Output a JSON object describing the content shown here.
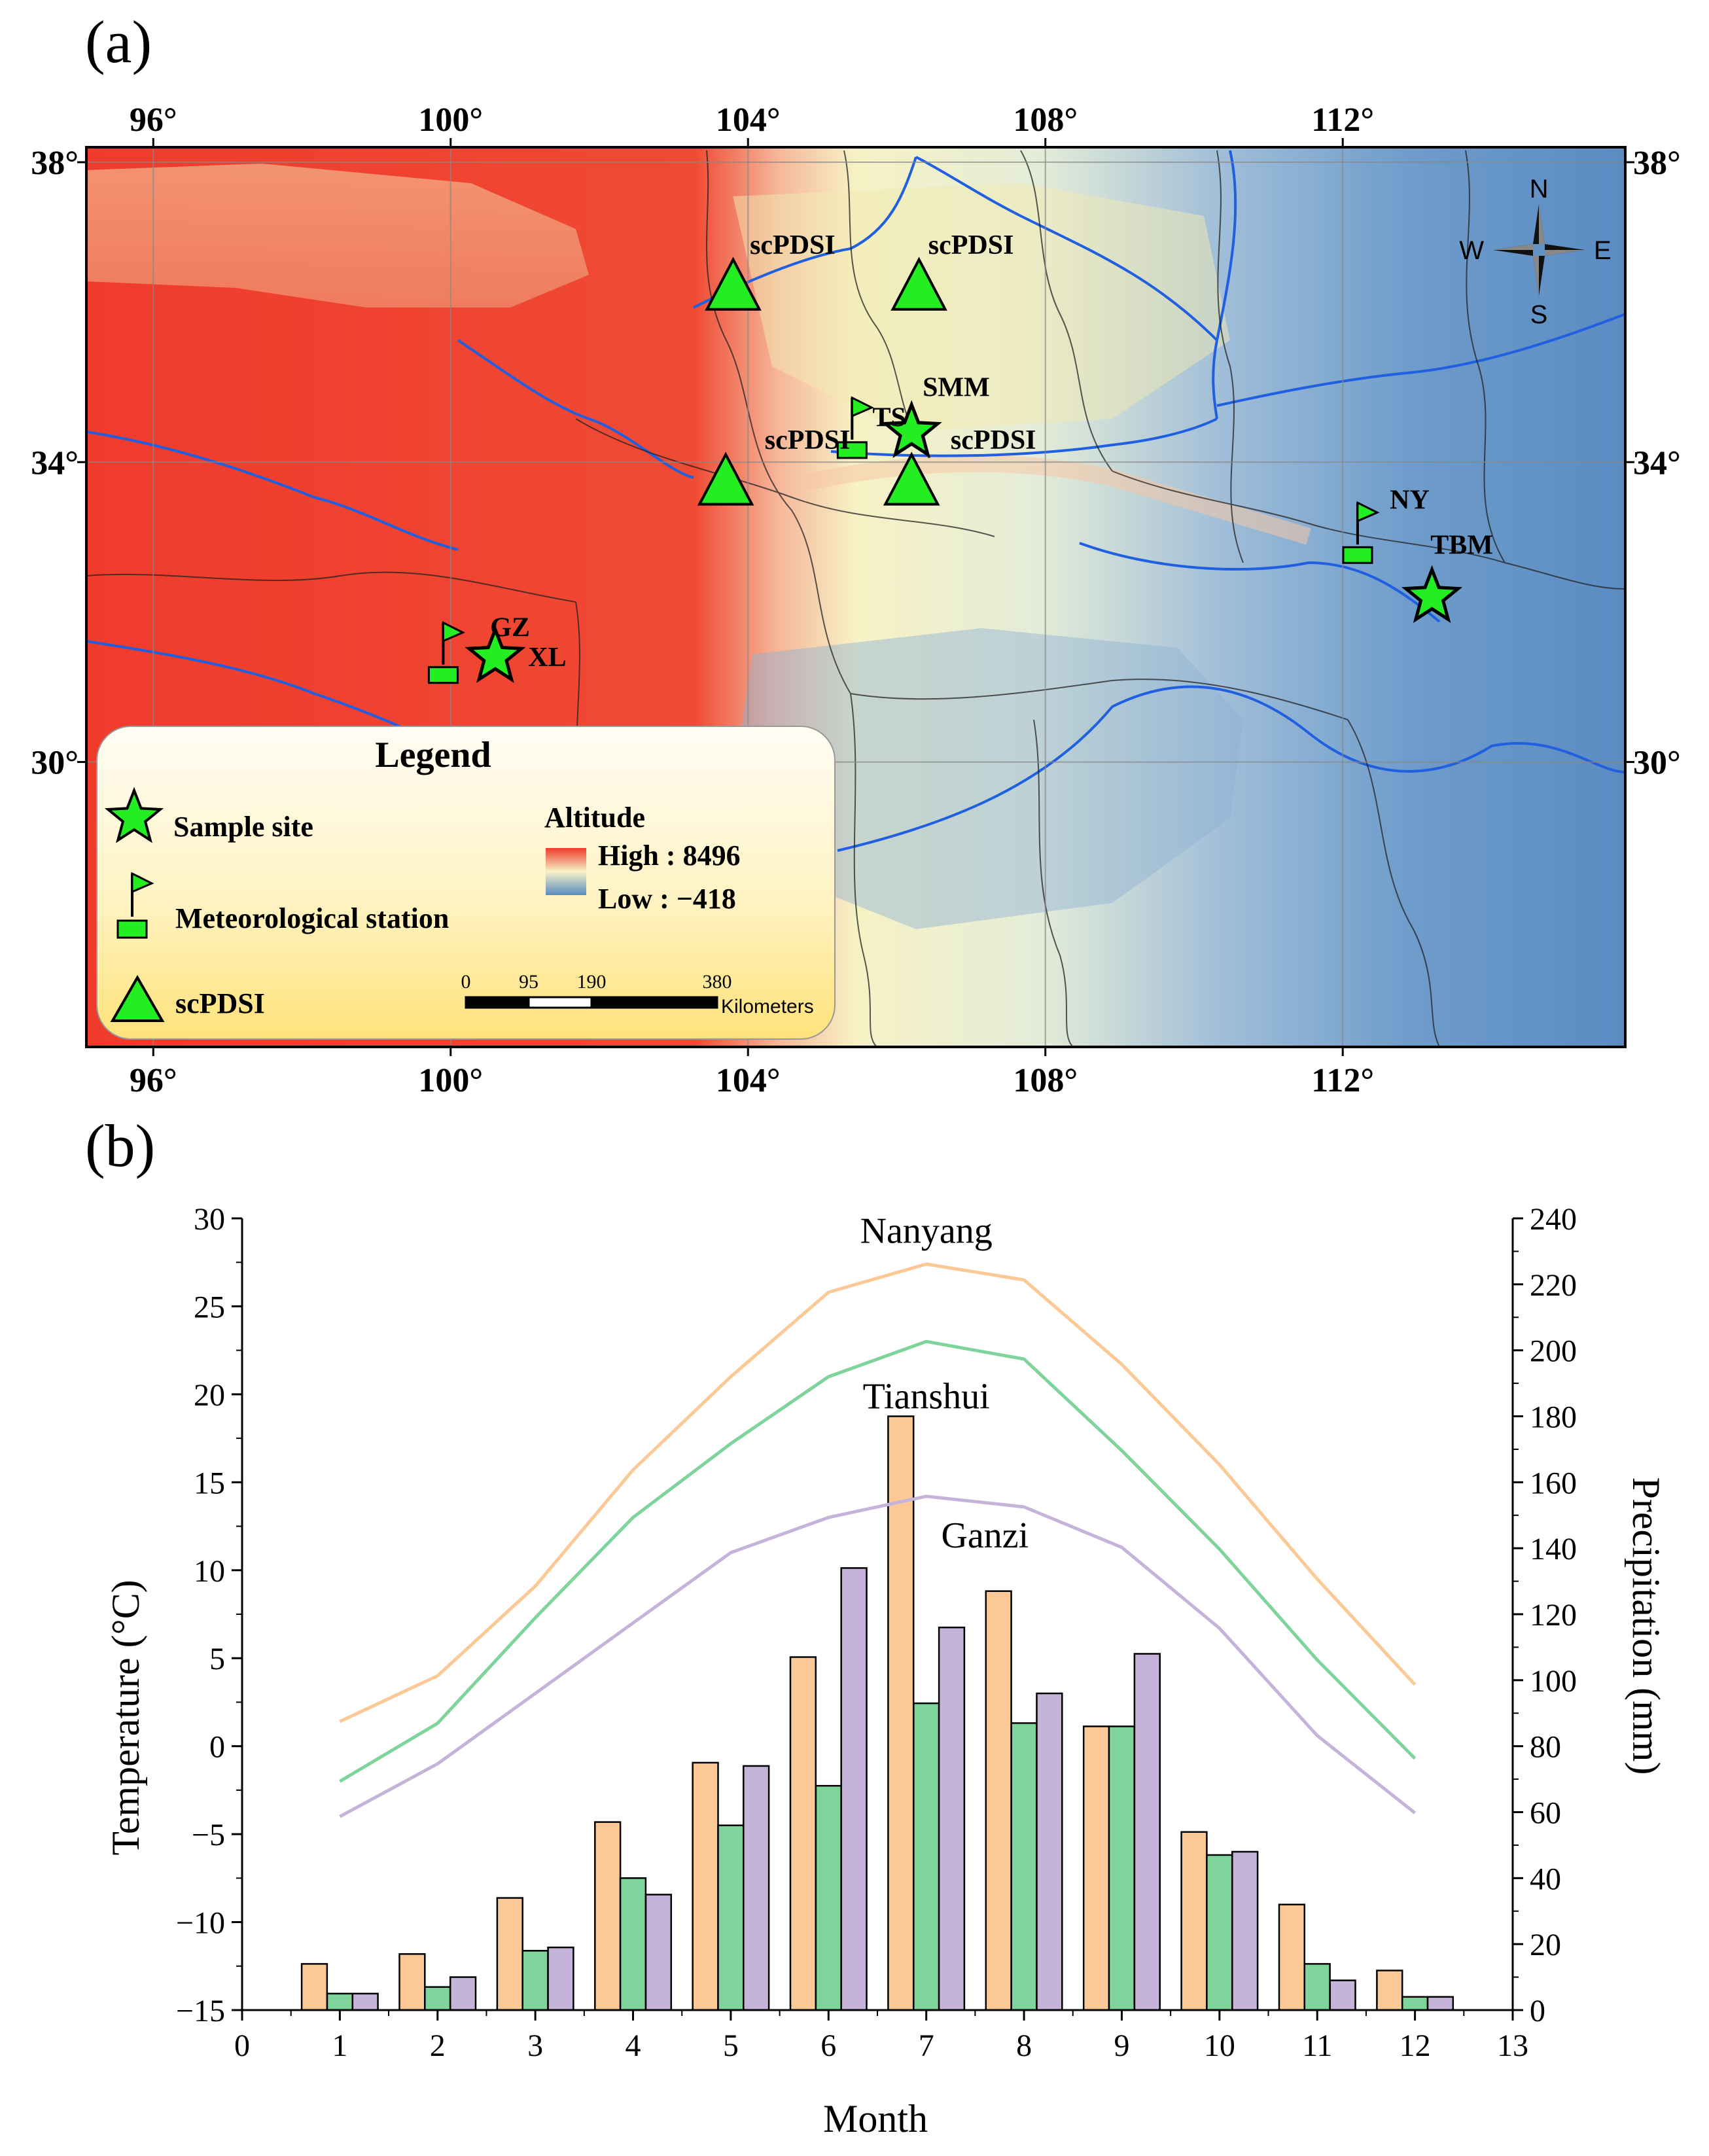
{
  "panels": [
    {
      "label": "(a)"
    },
    {
      "label": "(b)"
    }
  ],
  "map": {
    "lon_ticks": [
      {
        "lon": 96,
        "label": "96°"
      },
      {
        "lon": 100,
        "label": "100°"
      },
      {
        "lon": 104,
        "label": "104°"
      },
      {
        "lon": 108,
        "label": "108°"
      },
      {
        "lon": 112,
        "label": "112°"
      }
    ],
    "lat_ticks": [
      {
        "lat": 38,
        "label": "38°"
      },
      {
        "lat": 34,
        "label": "34°"
      },
      {
        "lat": 30,
        "label": "30°"
      }
    ],
    "lon_range": [
      95.1,
      115.8
    ],
    "lat_range": [
      26.2,
      38.2
    ],
    "colors": {
      "high": "#ef3b2c",
      "mid": "#f6f2bd",
      "low": "#5b8fc4",
      "river": "#1f5fe0",
      "marker": "#22ee22"
    },
    "sample_sites": [
      {
        "lon": 106.2,
        "lat": 34.4
      },
      {
        "lon": 100.6,
        "lat": 31.4
      },
      {
        "lon": 113.2,
        "lat": 32.2
      }
    ],
    "stations": [
      {
        "lon": 105.4,
        "lat": 34.3
      },
      {
        "lon": 99.9,
        "lat": 31.3
      },
      {
        "lon": 112.2,
        "lat": 32.9
      }
    ],
    "scpdsi_points": [
      {
        "lon": 103.8,
        "lat": 36.3
      },
      {
        "lon": 106.3,
        "lat": 36.3
      },
      {
        "lon": 103.7,
        "lat": 33.7
      },
      {
        "lon": 106.2,
        "lat": 33.7
      }
    ],
    "labels": [
      {
        "text": "scPDSI",
        "lon": 104.6,
        "lat": 36.9
      },
      {
        "text": "scPDSI",
        "lon": 107.0,
        "lat": 36.9
      },
      {
        "text": "SMM",
        "lon": 106.8,
        "lat": 35.0
      },
      {
        "text": "TS",
        "lon": 105.9,
        "lat": 34.6
      },
      {
        "text": "scPDSI",
        "lon": 104.8,
        "lat": 34.3
      },
      {
        "text": "scPDSI",
        "lon": 107.3,
        "lat": 34.3
      },
      {
        "text": "GZ",
        "lon": 100.8,
        "lat": 31.8
      },
      {
        "text": "XL",
        "lon": 101.3,
        "lat": 31.4
      },
      {
        "text": "NY",
        "lon": 112.9,
        "lat": 33.5
      },
      {
        "text": "TBM",
        "lon": 113.6,
        "lat": 32.9
      }
    ],
    "compass": {
      "n": "N",
      "s": "S",
      "e": "E",
      "w": "W"
    },
    "legend": {
      "title": "Legend",
      "sample_site": "Sample site",
      "station": "Meteorological station",
      "scpdsi": "scPDSI",
      "altitude_title": "Altitude",
      "high": "High : 8496",
      "low": "Low : −418",
      "scale_labels": [
        "0",
        "95",
        "190",
        "380"
      ],
      "scale_values_km": [
        0,
        95,
        190,
        380
      ],
      "scale_unit": "Kilometers"
    }
  },
  "chart_data": {
    "type": "bar",
    "title": "",
    "xlabel": "Month",
    "ylabel_left": "Temperature (°C)",
    "ylabel_right": "Precipitation (mm)",
    "x_ticks": [
      0,
      1,
      2,
      3,
      4,
      5,
      6,
      7,
      8,
      9,
      10,
      11,
      12,
      13
    ],
    "xlim": [
      0,
      13
    ],
    "ylim_left": [
      -15,
      30
    ],
    "ylim_right": [
      0,
      240
    ],
    "yticks_left": [
      -15,
      -10,
      -5,
      0,
      5,
      10,
      15,
      20,
      25,
      30
    ],
    "yticks_right": [
      0,
      20,
      40,
      60,
      80,
      100,
      120,
      140,
      160,
      180,
      200,
      220,
      240
    ],
    "months": [
      1,
      2,
      3,
      4,
      5,
      6,
      7,
      8,
      9,
      10,
      11,
      12
    ],
    "precipitation_series": [
      {
        "name": "Nanyang",
        "color": "#fcc996",
        "values": [
          14,
          17,
          34,
          57,
          75,
          107,
          180,
          127,
          86,
          54,
          32,
          12
        ]
      },
      {
        "name": "Tianshui",
        "color": "#7fd49b",
        "values": [
          5,
          7,
          18,
          40,
          56,
          68,
          93,
          87,
          86,
          47,
          14,
          4
        ]
      },
      {
        "name": "Ganzi",
        "color": "#c6b3d9",
        "values": [
          5,
          10,
          19,
          35,
          74,
          134,
          116,
          96,
          108,
          48,
          9,
          4
        ]
      }
    ],
    "temperature_series": [
      {
        "name": "Nanyang",
        "color": "#fcc996",
        "values": [
          1.4,
          4.0,
          9.1,
          15.7,
          21.0,
          25.8,
          27.4,
          26.5,
          21.7,
          16.0,
          9.5,
          3.5
        ]
      },
      {
        "name": "Tianshui",
        "color": "#7fd49b",
        "values": [
          -2.0,
          1.3,
          7.3,
          13.0,
          17.2,
          21.0,
          23.0,
          22.0,
          16.8,
          11.2,
          4.9,
          -0.7
        ]
      },
      {
        "name": "Ganzi",
        "color": "#c6b3d9",
        "values": [
          -4.0,
          -1.0,
          3.0,
          7.0,
          11.0,
          13.0,
          14.2,
          13.6,
          11.3,
          6.7,
          0.6,
          -3.8
        ]
      }
    ],
    "annotations": [
      {
        "text": "Nanyang",
        "x": 7,
        "y": 28.6
      },
      {
        "text": "Tianshui",
        "x": 7,
        "y": 19.2
      },
      {
        "text": "Ganzi",
        "x": 7.6,
        "y": 11.3
      }
    ]
  }
}
